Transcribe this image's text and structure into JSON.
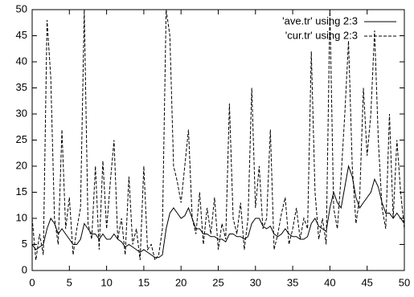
{
  "chart_data": {
    "type": "line",
    "x": [
      0,
      0.5,
      1,
      1.5,
      2,
      2.5,
      3,
      3.5,
      4,
      4.5,
      5,
      5.5,
      6,
      6.5,
      7,
      7.5,
      8,
      8.5,
      9,
      9.5,
      10,
      10.5,
      11,
      11.5,
      12,
      12.5,
      13,
      13.5,
      14,
      14.5,
      15,
      15.5,
      16,
      16.5,
      17,
      17.5,
      18,
      18.5,
      19,
      19.5,
      20,
      20.5,
      21,
      21.5,
      22,
      22.5,
      23,
      23.5,
      24,
      24.5,
      25,
      25.5,
      26,
      26.5,
      27,
      27.5,
      28,
      28.5,
      29,
      29.5,
      30,
      30.5,
      31,
      31.5,
      32,
      32.5,
      33,
      33.5,
      34,
      34.5,
      35,
      35.5,
      36,
      36.5,
      37,
      37.5,
      38,
      38.5,
      39,
      39.5,
      40,
      40.5,
      41,
      41.5,
      42,
      42.5,
      43,
      43.5,
      44,
      44.5,
      45,
      45.5,
      46,
      46.5,
      47,
      47.5,
      48,
      48.5,
      49,
      49.5,
      50
    ],
    "series": [
      {
        "name": "'ave.tr' using 2:3",
        "color": "#000000",
        "dash": "solid",
        "values": [
          5,
          4,
          4.5,
          5,
          8,
          10,
          9,
          7,
          8,
          7,
          6,
          5,
          5,
          6,
          9,
          8,
          7,
          7,
          6,
          7,
          6,
          6,
          7,
          6,
          5.5,
          4.5,
          5,
          4.5,
          4,
          3.5,
          4,
          3.5,
          3,
          2.5,
          2.5,
          3,
          8,
          11,
          12,
          11,
          10,
          10.5,
          12,
          10,
          8,
          8,
          7,
          7,
          6.5,
          6.5,
          6,
          6,
          5.5,
          7,
          7,
          6.5,
          6.5,
          6,
          6.5,
          9,
          10,
          10,
          8.5,
          8,
          8.5,
          7,
          6.5,
          7,
          8,
          7,
          6.5,
          6.5,
          6,
          6,
          6.5,
          9,
          10,
          8.5,
          8,
          7.5,
          12,
          15,
          13,
          12,
          16,
          20,
          18,
          14,
          12,
          13,
          14,
          15,
          17.5,
          16,
          13,
          11,
          11,
          10,
          11,
          10,
          9
        ]
      },
      {
        "name": "'cur.tr' using 2:3",
        "color": "#000000",
        "dash": "dashed",
        "values": [
          10,
          2,
          7,
          3,
          48,
          37,
          10,
          5,
          27,
          8,
          14,
          3,
          8,
          12,
          50,
          9,
          6,
          20,
          4,
          21,
          8,
          17,
          25,
          6,
          10,
          3,
          18,
          5,
          8,
          2,
          20,
          4,
          5,
          2,
          3,
          8,
          50,
          45,
          20,
          17,
          13,
          20,
          27,
          10,
          7,
          15,
          5,
          12,
          7,
          14,
          4,
          9,
          6,
          32,
          10,
          7,
          13,
          4,
          10,
          35,
          12,
          20,
          8,
          10,
          27,
          4,
          7,
          11,
          14,
          5,
          8,
          12,
          6,
          10,
          8,
          42,
          15,
          6,
          10,
          5,
          50,
          12,
          8,
          18,
          30,
          44,
          20,
          9,
          14,
          35,
          22,
          30,
          46,
          25,
          12,
          8,
          30,
          10,
          25,
          15,
          8
        ]
      }
    ],
    "xlim": [
      0,
      50
    ],
    "ylim": [
      0,
      50
    ],
    "xticks": [
      0,
      5,
      10,
      15,
      20,
      25,
      30,
      35,
      40,
      45,
      50
    ],
    "yticks": [
      0,
      5,
      10,
      15,
      20,
      25,
      30,
      35,
      40,
      45,
      50
    ],
    "grid": false,
    "legend": "top-right"
  }
}
